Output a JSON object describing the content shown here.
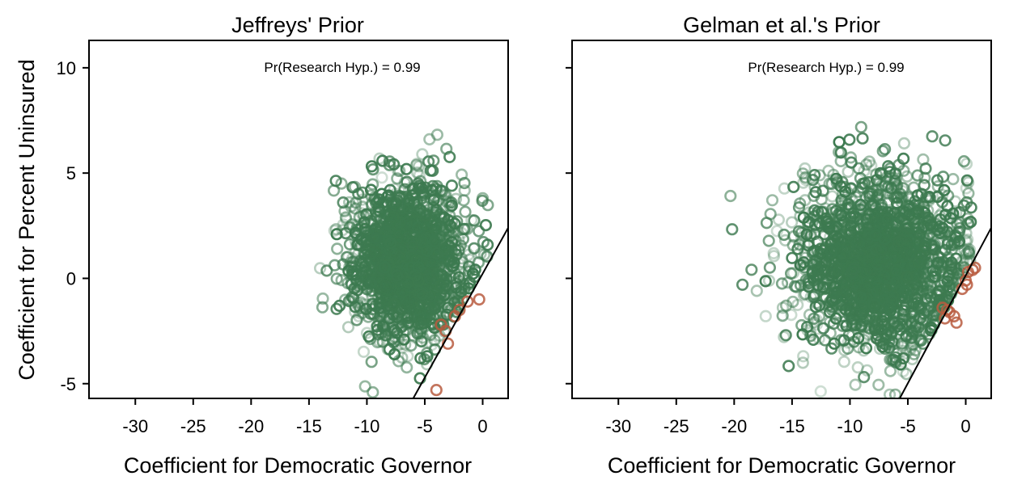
{
  "figure": {
    "ylabel": "Coefficient for Percent Uninsured",
    "colors": {
      "research": "#3d7a50",
      "null": "#b85c40",
      "axis": "#000000"
    }
  },
  "chart_data": [
    {
      "type": "scatter",
      "title": "Jeffreys' Prior",
      "xlabel": "Coefficient for Democratic Governor",
      "ylabel": "Coefficient for Percent Uninsured",
      "annotation": "Pr(Research Hyp.) = 0.99",
      "xlim": [
        -34,
        2.2
      ],
      "ylim": [
        -5.7,
        11.3
      ],
      "xticks": [
        -30,
        -25,
        -20,
        -15,
        -10,
        -5,
        0
      ],
      "xtick_labels": [
        "-30",
        "-25",
        "-20",
        "-15",
        "-10",
        "-5",
        "0"
      ],
      "yticks": [
        -5,
        0,
        5,
        10
      ],
      "ytick_labels": [
        "-5",
        "0",
        "5",
        "10"
      ],
      "boundary_line": {
        "points": [
          [
            -6,
            -5.7
          ],
          [
            2.2,
            2.4
          ]
        ]
      },
      "series": [
        {
          "group": "research",
          "center": [
            -6.6,
            0.8
          ],
          "spread": [
            2.3,
            1.85
          ],
          "n": 1700
        },
        {
          "group": "null",
          "points": [
            [
              -3.2,
              -2.5
            ],
            [
              -3.0,
              -3.1
            ],
            [
              -2.4,
              -1.8
            ],
            [
              -2.0,
              -1.5
            ],
            [
              -1.3,
              -1.1
            ],
            [
              -0.3,
              -1.0
            ],
            [
              -3.6,
              -2.2
            ],
            [
              -4.0,
              -5.3
            ]
          ]
        }
      ]
    },
    {
      "type": "scatter",
      "title": "Gelman et al.'s Prior",
      "xlabel": "Coefficient for Democratic Governor",
      "ylabel": "",
      "annotation": "Pr(Research Hyp.) = 0.99",
      "xlim": [
        -34,
        2.2
      ],
      "ylim": [
        -5.7,
        11.3
      ],
      "xticks": [
        -30,
        -25,
        -20,
        -15,
        -10,
        -5,
        0
      ],
      "xtick_labels": [
        "-30",
        "-25",
        "-20",
        "-15",
        "-10",
        "-5",
        "0"
      ],
      "yticks": [
        -5,
        0,
        5,
        10
      ],
      "ytick_labels": [],
      "boundary_line": {
        "points": [
          [
            -5.7,
            -5.7
          ],
          [
            2.2,
            2.4
          ]
        ]
      },
      "series": [
        {
          "group": "research",
          "center": [
            -7.4,
            0.7
          ],
          "spread": [
            3.3,
            2.05
          ],
          "n": 2000
        },
        {
          "group": "null",
          "points": [
            [
              0.8,
              0.5
            ],
            [
              0.6,
              0.4
            ],
            [
              0.2,
              0.3
            ],
            [
              0.0,
              -0.1
            ],
            [
              -0.3,
              -0.5
            ],
            [
              0.1,
              -0.3
            ],
            [
              -1.0,
              -1.8
            ],
            [
              -1.4,
              -1.6
            ],
            [
              -1.6,
              -1.5
            ],
            [
              -0.8,
              -2.1
            ],
            [
              -1.8,
              -1.9
            ],
            [
              -2.0,
              -1.4
            ]
          ]
        }
      ]
    }
  ]
}
